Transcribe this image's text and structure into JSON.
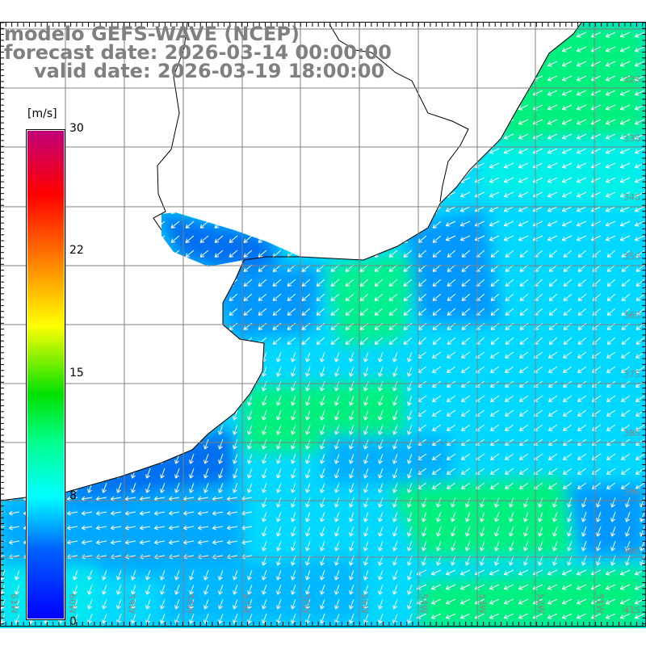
{
  "title": {
    "model": "modelo GEFS-WAVE (NCEP)",
    "forecast": "forecast date: 2026-03-14 00:00:00",
    "valid": "valid date: 2026-03-19 18:00:00"
  },
  "colorbar": {
    "unit": "[m/s]",
    "ticks": [
      "30",
      "22",
      "15",
      "8",
      "0"
    ],
    "colors": [
      "#c00078",
      "#ff0000",
      "#ff8000",
      "#ffff00",
      "#00e000",
      "#00ffff",
      "#0080ff",
      "#0000ff"
    ]
  },
  "axes": {
    "lon_labels": [
      "61W",
      "60W",
      "59W",
      "58W",
      "57W",
      "56W",
      "55W",
      "54W",
      "53W",
      "52W",
      "51W"
    ],
    "lat_labels": [
      "32S",
      "33S",
      "34S",
      "35S",
      "36S",
      "37S",
      "38S",
      "39S",
      "40S",
      "41S"
    ]
  },
  "palette": {
    "ocean_base": "#00d8ff",
    "blue": "#0098ff",
    "deep_blue": "#0070f0",
    "cyan": "#00f0f0",
    "green": "#00f080",
    "land": "#ffffff",
    "grid": "#808080",
    "arrow": "#ffffff"
  }
}
